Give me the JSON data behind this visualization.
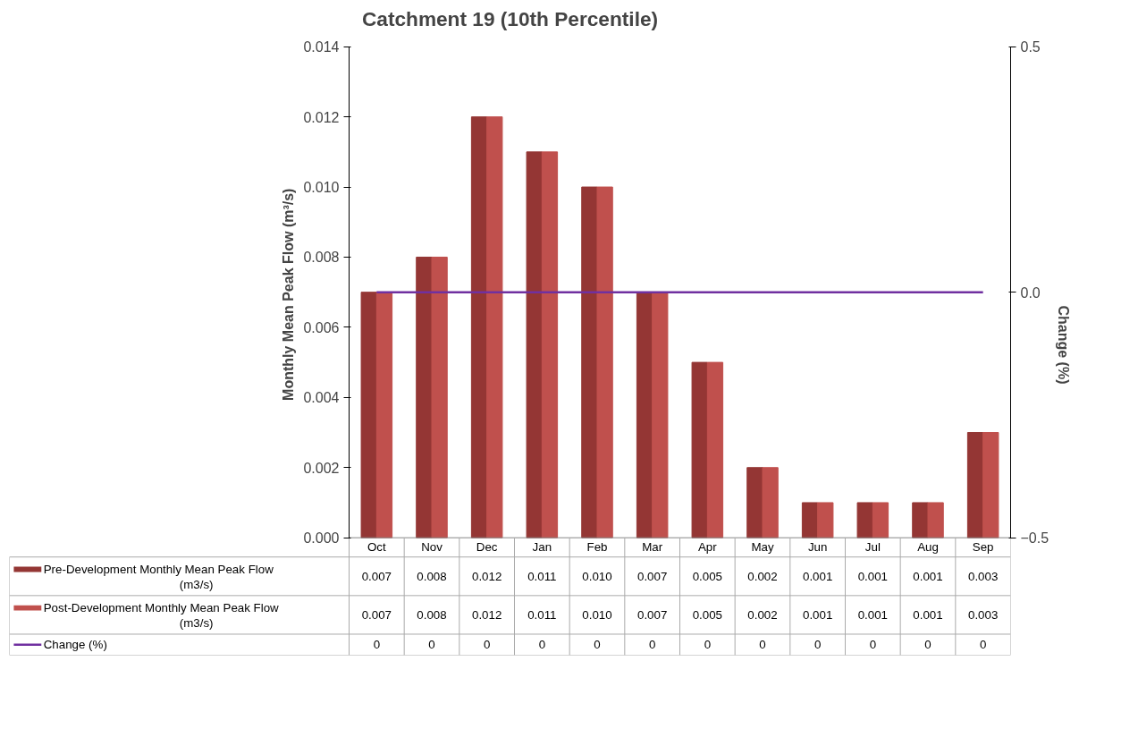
{
  "chart_data": {
    "type": "bar",
    "title": "Catchment 19 (10th Percentile)",
    "ylabel": "Monthly Mean  Peak Flow (m³/s)",
    "y2label": "Change (%)",
    "categories": [
      "Oct",
      "Nov",
      "Dec",
      "Jan",
      "Feb",
      "Mar",
      "Apr",
      "May",
      "Jun",
      "Jul",
      "Aug",
      "Sep"
    ],
    "series": [
      {
        "name": "Pre-Development Monthly Mean Peak Flow (m3/s)",
        "color": "#943634",
        "values": [
          0.007,
          0.008,
          0.012,
          0.011,
          0.01,
          0.007,
          0.005,
          0.002,
          0.001,
          0.001,
          0.001,
          0.003
        ],
        "value_labels": [
          "0.007",
          "0.008",
          "0.012",
          "0.011",
          "0.010",
          "0.007",
          "0.005",
          "0.002",
          "0.001",
          "0.001",
          "0.001",
          "0.003"
        ]
      },
      {
        "name": "Post-Development Monthly Mean  Peak Flow (m3/s)",
        "color": "#c0504d",
        "values": [
          0.007,
          0.008,
          0.012,
          0.011,
          0.01,
          0.007,
          0.005,
          0.002,
          0.001,
          0.001,
          0.001,
          0.003
        ],
        "value_labels": [
          "0.007",
          "0.008",
          "0.012",
          "0.011",
          "0.010",
          "0.007",
          "0.005",
          "0.002",
          "0.001",
          "0.001",
          "0.001",
          "0.003"
        ]
      },
      {
        "name": "Change (%)",
        "type": "line",
        "axis": "y2",
        "color": "#7030a0",
        "values": [
          0,
          0,
          0,
          0,
          0,
          0,
          0,
          0,
          0,
          0,
          0,
          0
        ],
        "value_labels": [
          "0",
          "0",
          "0",
          "0",
          "0",
          "0",
          "0",
          "0",
          "0",
          "0",
          "0",
          "0"
        ]
      }
    ],
    "ylim": [
      0,
      0.014
    ],
    "yticks": [
      {
        "value": 0,
        "label": "0.000"
      },
      {
        "value": 0.002,
        "label": "0.002"
      },
      {
        "value": 0.004,
        "label": "0.004"
      },
      {
        "value": 0.006,
        "label": "0.006"
      },
      {
        "value": 0.008,
        "label": "0.008"
      },
      {
        "value": 0.01,
        "label": "0.010"
      },
      {
        "value": 0.012,
        "label": "0.012"
      },
      {
        "value": 0.014,
        "label": "0.014"
      }
    ],
    "y2lim": [
      -0.5,
      0.5
    ],
    "y2ticks": [
      -0.5,
      {
        "value": 0,
        "label": "0.0"
      },
      0.5
    ],
    "grid": false,
    "legend": "bottom"
  }
}
